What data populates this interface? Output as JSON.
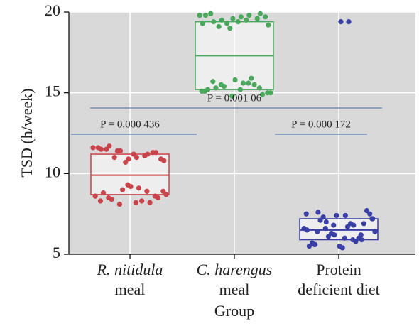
{
  "chart_data": {
    "type": "box",
    "y_label": "TSD (h/week)",
    "x_label": "Group",
    "ylim": [
      5,
      20
    ],
    "yticks": [
      5,
      10,
      15,
      20
    ],
    "grid": true,
    "background": "#d9d9d9",
    "categories": [
      [
        "R. nitidula",
        "meal"
      ],
      [
        "C. harengus",
        "meal"
      ],
      [
        "Protein",
        "deficient diet"
      ]
    ],
    "groups": [
      {
        "color": "#c9434a",
        "q1": 8.7,
        "median": 9.9,
        "q3": 11.2,
        "points": [
          11.6,
          11.4,
          11.2,
          11.5,
          10.9,
          11.3,
          11.7,
          11.0,
          10.8,
          11.4,
          11.1,
          11.6,
          10.7,
          11.3,
          11.5,
          11.2,
          10.9,
          11.0,
          8.3,
          8.6,
          9.0,
          8.2,
          8.8,
          9.2,
          8.5,
          8.4,
          9.1,
          8.7,
          8.1,
          8.9,
          8.3,
          9.3,
          8.6,
          8.5,
          8.2,
          8.9
        ],
        "outliers": []
      },
      {
        "color": "#4aa85c",
        "q1": 15.2,
        "median": 17.3,
        "q3": 19.4,
        "points": [
          19.8,
          19.6,
          19.9,
          19.4,
          19.7,
          19.2,
          19.5,
          19.8,
          19.3,
          19.0,
          19.6,
          19.9,
          19.4,
          19.7,
          19.1,
          19.5,
          19.8,
          19.3,
          15.5,
          15.2,
          15.8,
          14.9,
          15.3,
          15.6,
          15.0,
          15.4,
          15.9,
          15.1,
          14.8,
          15.3,
          15.7,
          15.2,
          15.0,
          15.5,
          15.6,
          15.1
        ],
        "outliers": []
      },
      {
        "color": "#3a3fa6",
        "q1": 5.9,
        "median": 6.5,
        "q3": 7.2,
        "points": [
          7.6,
          7.4,
          7.2,
          7.0,
          6.8,
          6.5,
          6.2,
          5.9,
          5.6,
          5.4,
          7.5,
          7.3,
          6.9,
          6.6,
          6.3,
          6.0,
          5.7,
          5.5,
          7.7,
          7.1,
          6.7,
          6.4,
          6.1,
          5.8,
          5.5,
          7.4,
          6.9,
          6.4,
          6.0,
          7.2,
          6.6,
          5.9,
          7.5,
          6.8,
          6.2,
          5.6
        ],
        "outliers": [
          19.4,
          19.4
        ]
      }
    ],
    "significance_color": "#5b7fb8",
    "annotations": [
      "P = 0.000 436",
      "P = 0.001 06",
      "P = 0.000 172"
    ]
  }
}
